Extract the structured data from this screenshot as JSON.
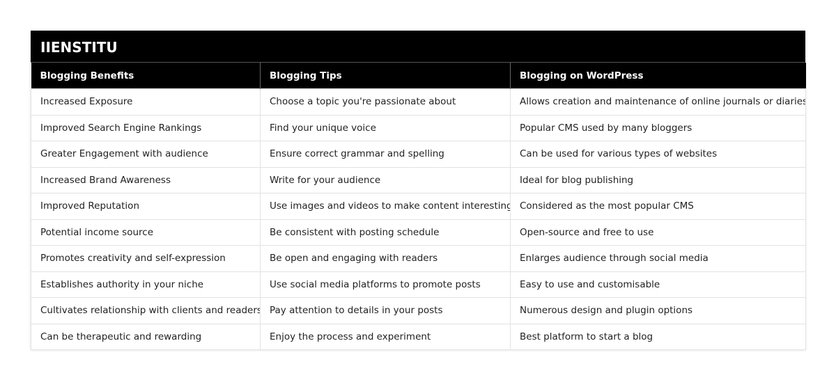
{
  "title": "IIENSTITU",
  "headers": [
    "Blogging Benefits",
    "Blogging Tips",
    "Blogging on WordPress"
  ],
  "rows": [
    [
      "Increased Exposure",
      "Choose a topic you're passionate about",
      "Allows creation and maintenance of online journals or diaries"
    ],
    [
      "Improved Search Engine Rankings",
      "Find your unique voice",
      "Popular CMS used by many bloggers"
    ],
    [
      "Greater Engagement with audience",
      "Ensure correct grammar and spelling",
      "Can be used for various types of websites"
    ],
    [
      "Increased Brand Awareness",
      "Write for your audience",
      "Ideal for blog publishing"
    ],
    [
      "Improved Reputation",
      "Use images and videos to make content interesting",
      "Considered as the most popular CMS"
    ],
    [
      "Potential income source",
      "Be consistent with posting schedule",
      "Open-source and free to use"
    ],
    [
      "Promotes creativity and self-expression",
      "Be open and engaging with readers",
      "Enlarges audience through social media"
    ],
    [
      "Establishes authority in your niche",
      "Use social media platforms to promote posts",
      "Easy to use and customisable"
    ],
    [
      "Cultivates relationship with clients and readers",
      "Pay attention to details in your posts",
      "Numerous design and plugin options"
    ],
    [
      "Can be therapeutic and rewarding",
      "Enjoy the process and experiment",
      "Best platform to start a blog"
    ]
  ]
}
